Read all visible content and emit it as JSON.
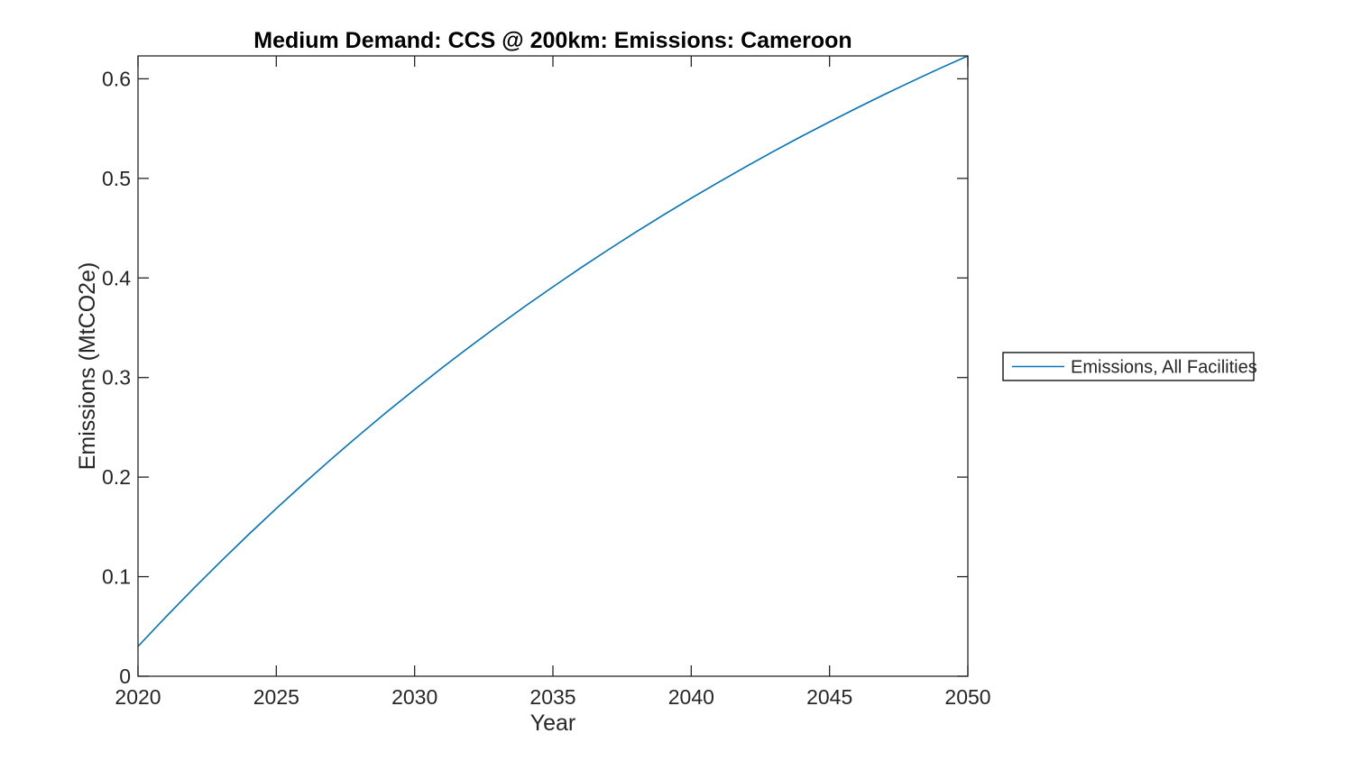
{
  "chart_data": {
    "type": "line",
    "title": "Medium Demand: CCS @ 200km: Emissions: Cameroon",
    "xlabel": "Year",
    "ylabel": "Emissions (MtCO2e)",
    "xlim": [
      2020,
      2050
    ],
    "ylim": [
      0,
      0.623
    ],
    "grid": false,
    "box": true,
    "tick_direction": "in",
    "axis_color": "#262626",
    "background_color": "#ffffff",
    "xticks": {
      "values": [
        2020,
        2025,
        2030,
        2035,
        2040,
        2045,
        2050
      ],
      "labels": [
        "2020",
        "2025",
        "2030",
        "2035",
        "2040",
        "2045",
        "2050"
      ]
    },
    "yticks": {
      "values": [
        0,
        0.1,
        0.2,
        0.3,
        0.4,
        0.5,
        0.6
      ],
      "labels": [
        "0",
        "0.1",
        "0.2",
        "0.3",
        "0.4",
        "0.5",
        "0.6"
      ]
    },
    "legend": {
      "position": "right-outside",
      "border_color": "#000000",
      "entries": [
        {
          "label": "Emissions, All Facilities",
          "color": "#0072BD"
        }
      ]
    },
    "series": [
      {
        "name": "Emissions, All Facilities",
        "color": "#0072BD",
        "x": [
          2020,
          2021,
          2022,
          2023,
          2024,
          2025,
          2026,
          2027,
          2028,
          2029,
          2030,
          2031,
          2032,
          2033,
          2034,
          2035,
          2036,
          2037,
          2038,
          2039,
          2040,
          2041,
          2042,
          2043,
          2044,
          2045,
          2046,
          2047,
          2048,
          2049,
          2050
        ],
        "y": [
          0.03,
          0.0594,
          0.0879,
          0.1155,
          0.1424,
          0.1685,
          0.1938,
          0.2184,
          0.2423,
          0.2655,
          0.288,
          0.3099,
          0.3311,
          0.3517,
          0.3717,
          0.3911,
          0.41,
          0.4283,
          0.4461,
          0.4633,
          0.4801,
          0.4963,
          0.5121,
          0.5275,
          0.5424,
          0.5568,
          0.5708,
          0.5845,
          0.5977,
          0.6106,
          0.623
        ]
      }
    ]
  }
}
